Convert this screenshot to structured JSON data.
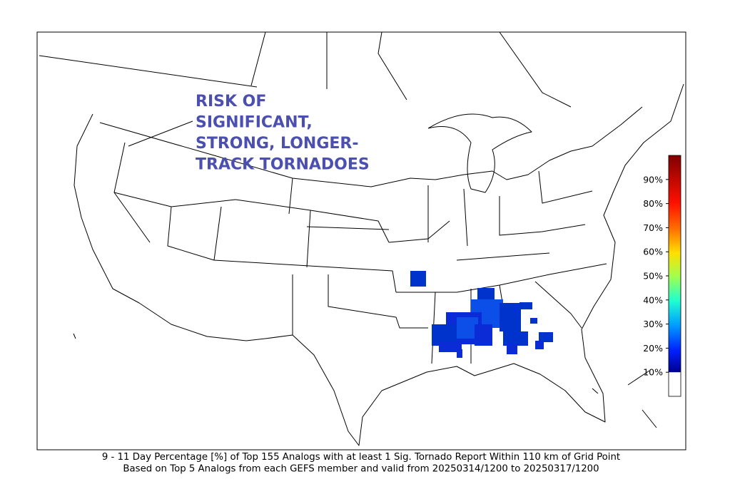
{
  "title_lines": [
    "RISK OF",
    "SIGNIFICANT,",
    "STRONG, LONGER-",
    "TRACK TORNADOES"
  ],
  "colorbar": {
    "lim": [
      0,
      100
    ],
    "ticks": [
      {
        "value": 10,
        "label": "10%"
      },
      {
        "value": 20,
        "label": "20%"
      },
      {
        "value": 30,
        "label": "30%"
      },
      {
        "value": 40,
        "label": "40%"
      },
      {
        "value": 50,
        "label": "50%"
      },
      {
        "value": 60,
        "label": "60%"
      },
      {
        "value": 70,
        "label": "70%"
      },
      {
        "value": 80,
        "label": "80%"
      },
      {
        "value": 90,
        "label": "90%"
      }
    ]
  },
  "caption": [
    "9 - 11 Day  Percentage [%] of Top 155 Analogs with at least 1 Sig. Tornado Report Within 110 km of Grid Point",
    "Based on Top 5 Analogs from each GEFS member and valid from 20250314/1200 to 20250317/1200"
  ]
}
